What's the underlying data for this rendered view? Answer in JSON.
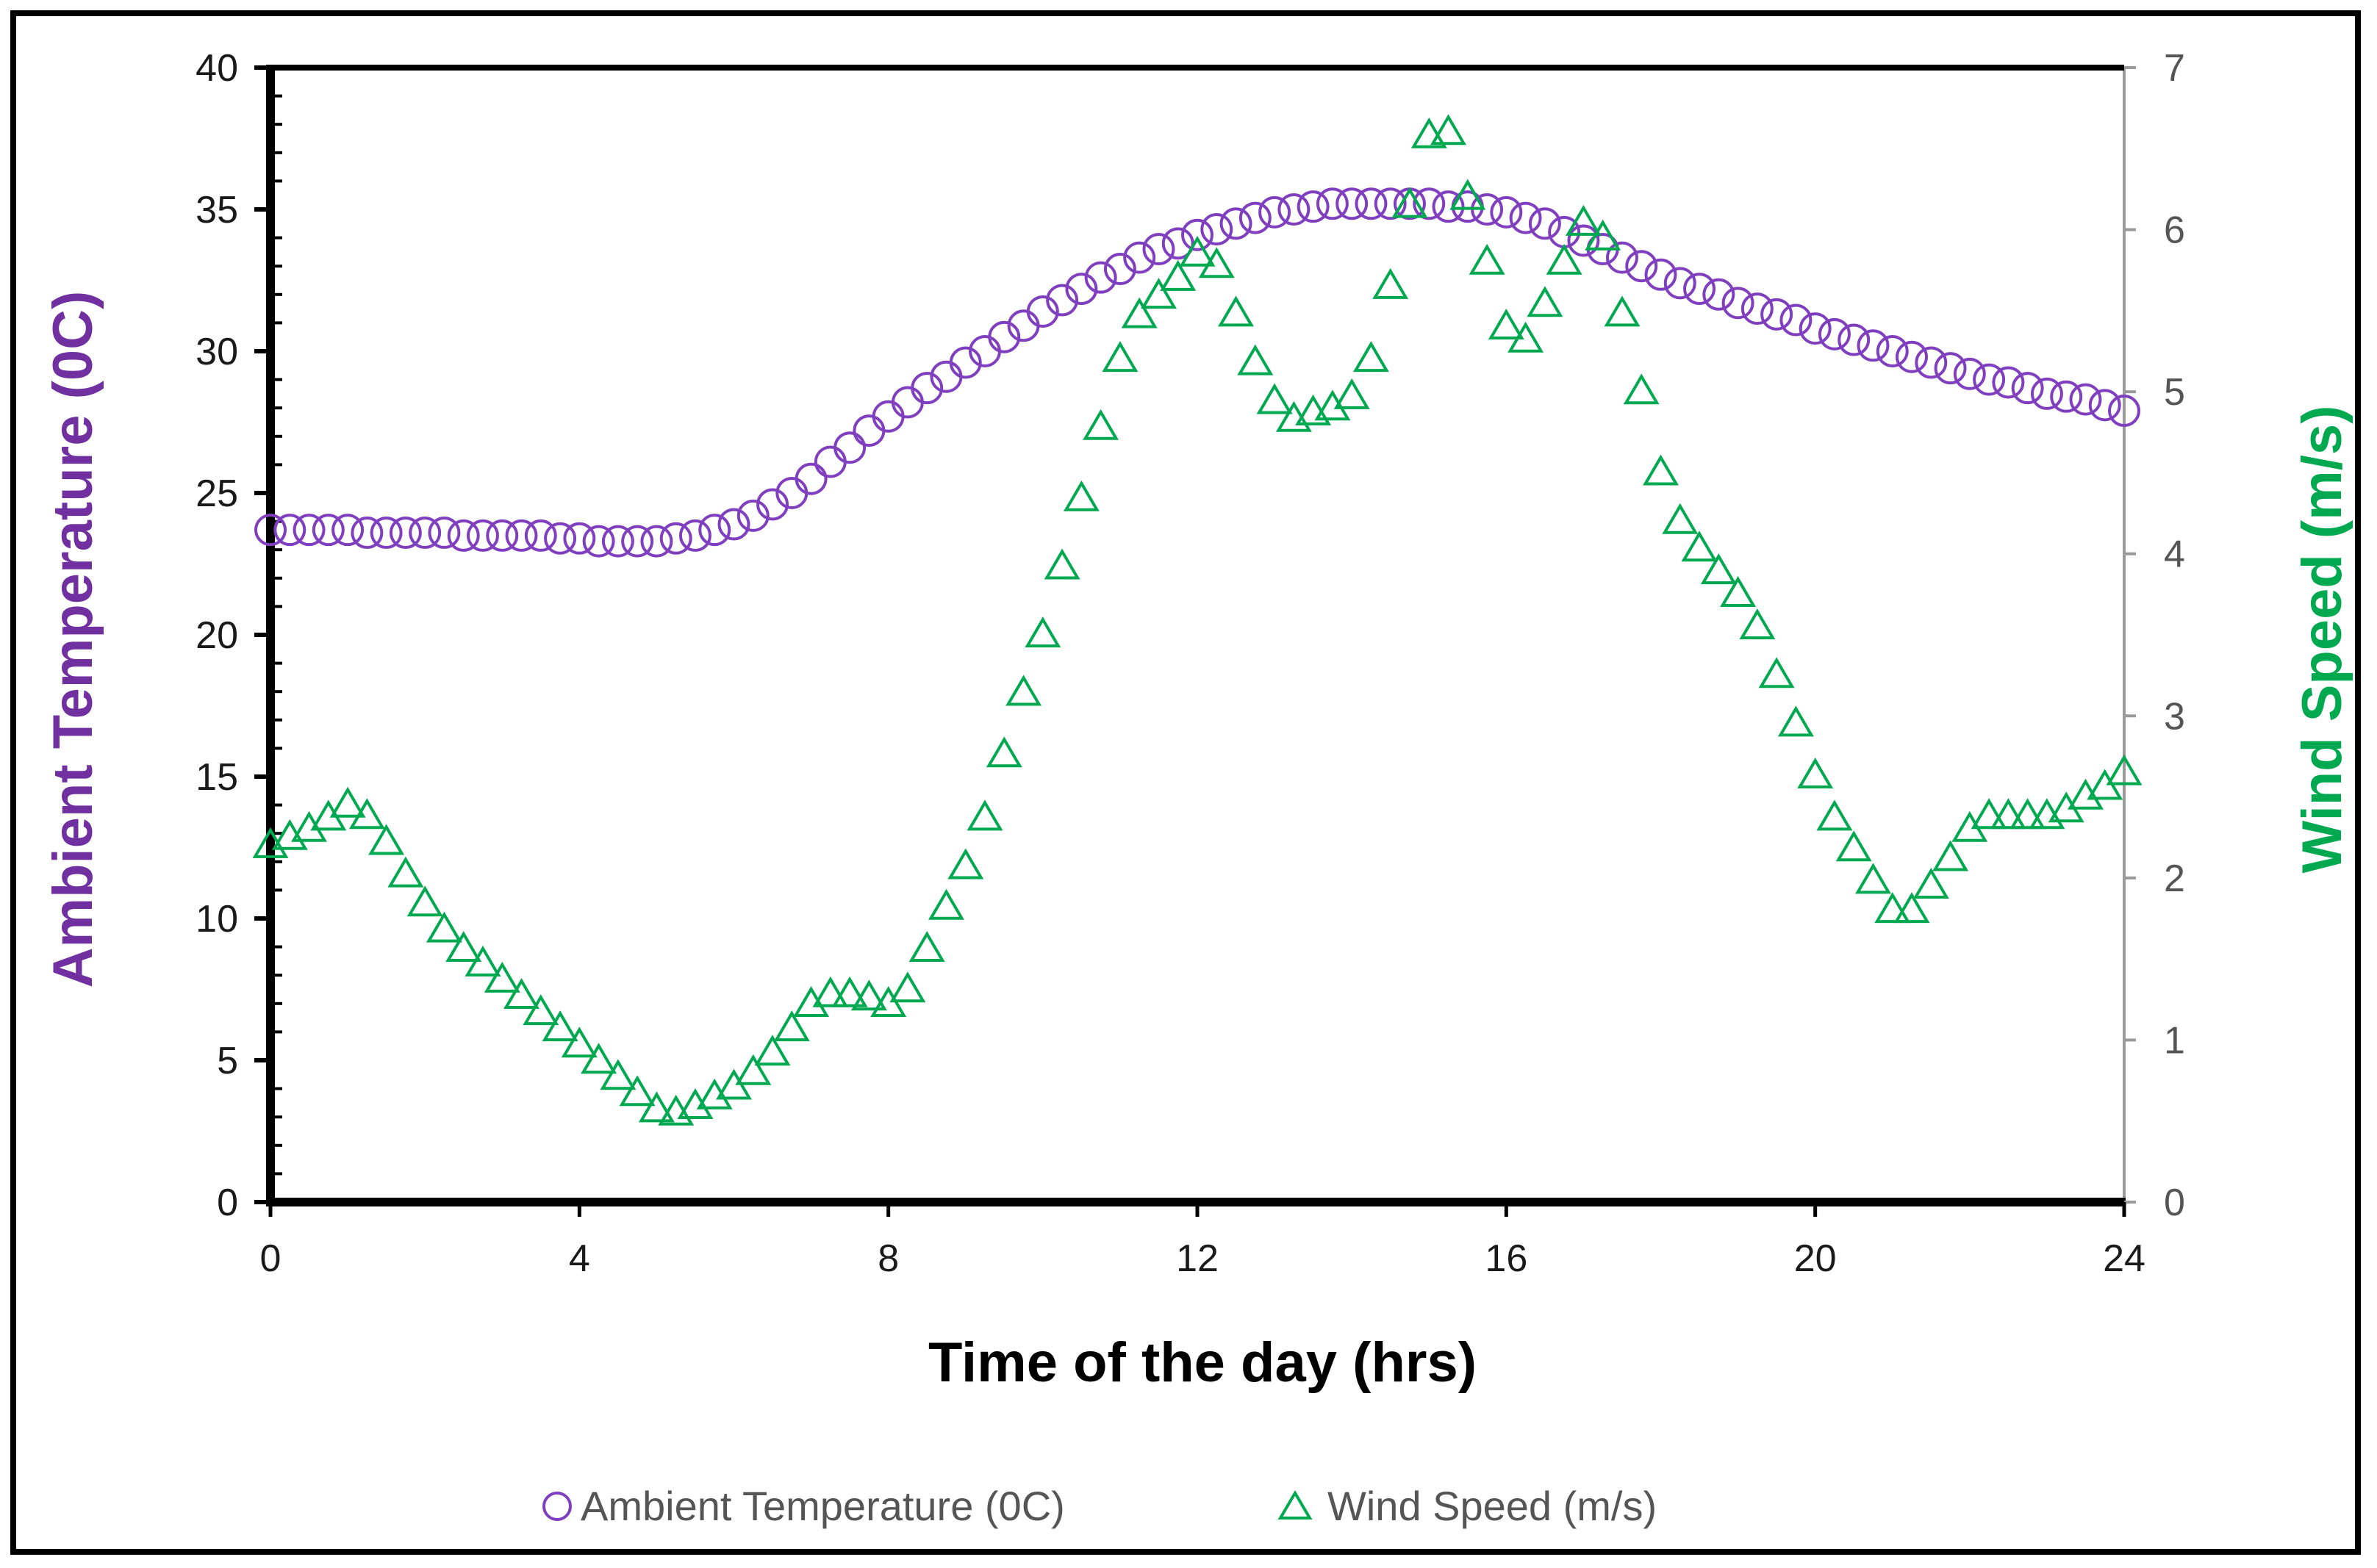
{
  "chart_data": {
    "type": "scatter",
    "title": "",
    "xlabel": "Time of the day (hrs)",
    "ylabel_left": "Ambient Temperature (0C)",
    "ylabel_right": "Wind Speed (m/s)",
    "xlim": [
      0,
      24
    ],
    "ylim_left": [
      0,
      40
    ],
    "ylim_right": [
      0,
      7
    ],
    "x_ticks": [
      "0",
      "4",
      "8",
      "12",
      "16",
      "20",
      "24"
    ],
    "y_left_ticks": [
      "0",
      "5",
      "10",
      "15",
      "20",
      "25",
      "30",
      "35",
      "40"
    ],
    "y_right_ticks": [
      "0",
      "1",
      "2",
      "3",
      "4",
      "5",
      "6",
      "7"
    ],
    "grid": false,
    "legend_position": "bottom",
    "colors": {
      "temperature": "#7f3fbf",
      "wind": "#00a84f",
      "axis": "#000000"
    },
    "series": [
      {
        "name": "Ambient Temperature (0C)",
        "axis": "left",
        "marker": "circle",
        "color": "#7f3fbf",
        "x": [
          0,
          0.25,
          0.5,
          0.75,
          1,
          1.25,
          1.5,
          1.75,
          2,
          2.25,
          2.5,
          2.75,
          3,
          3.25,
          3.5,
          3.75,
          4,
          4.25,
          4.5,
          4.75,
          5,
          5.25,
          5.5,
          5.75,
          6,
          6.25,
          6.5,
          6.75,
          7,
          7.25,
          7.5,
          7.75,
          8,
          8.25,
          8.5,
          8.75,
          9,
          9.25,
          9.5,
          9.75,
          10,
          10.25,
          10.5,
          10.75,
          11,
          11.25,
          11.5,
          11.75,
          12,
          12.25,
          12.5,
          12.75,
          13,
          13.25,
          13.5,
          13.75,
          14,
          14.25,
          14.5,
          14.75,
          15,
          15.25,
          15.5,
          15.75,
          16,
          16.25,
          16.5,
          16.75,
          17,
          17.25,
          17.5,
          17.75,
          18,
          18.25,
          18.5,
          18.75,
          19,
          19.25,
          19.5,
          19.75,
          20,
          20.25,
          20.5,
          20.75,
          21,
          21.25,
          21.5,
          21.75,
          22,
          22.25,
          22.5,
          22.75,
          23,
          23.25,
          23.5,
          23.75,
          24
        ],
        "values": [
          23.7,
          23.7,
          23.7,
          23.7,
          23.7,
          23.6,
          23.6,
          23.6,
          23.6,
          23.6,
          23.5,
          23.5,
          23.5,
          23.5,
          23.5,
          23.4,
          23.4,
          23.3,
          23.3,
          23.3,
          23.3,
          23.4,
          23.5,
          23.7,
          23.9,
          24.2,
          24.6,
          25.0,
          25.5,
          26.1,
          26.6,
          27.2,
          27.7,
          28.2,
          28.7,
          29.1,
          29.6,
          30.0,
          30.5,
          30.9,
          31.4,
          31.8,
          32.2,
          32.6,
          32.9,
          33.3,
          33.6,
          33.8,
          34.1,
          34.3,
          34.5,
          34.7,
          34.9,
          35.0,
          35.1,
          35.2,
          35.2,
          35.2,
          35.2,
          35.2,
          35.2,
          35.1,
          35.1,
          35.0,
          34.9,
          34.7,
          34.5,
          34.2,
          33.9,
          33.6,
          33.3,
          33.0,
          32.7,
          32.4,
          32.2,
          32.0,
          31.7,
          31.5,
          31.3,
          31.1,
          30.8,
          30.6,
          30.4,
          30.2,
          30.0,
          29.8,
          29.6,
          29.4,
          29.2,
          29.0,
          28.9,
          28.7,
          28.5,
          28.4,
          28.3,
          28.1,
          27.9
        ]
      },
      {
        "name": "Wind Speed (m/s)",
        "axis": "right",
        "marker": "triangle",
        "color": "#00a84f",
        "x": [
          0,
          0.25,
          0.5,
          0.75,
          1,
          1.25,
          1.5,
          1.75,
          2,
          2.25,
          2.5,
          2.75,
          3,
          3.25,
          3.5,
          3.75,
          4,
          4.25,
          4.5,
          4.75,
          5,
          5.25,
          5.5,
          5.75,
          6,
          6.25,
          6.5,
          6.75,
          7,
          7.25,
          7.5,
          7.75,
          8,
          8.25,
          8.5,
          8.75,
          9,
          9.25,
          9.5,
          9.75,
          10,
          10.25,
          10.5,
          10.75,
          11,
          11.25,
          11.5,
          11.75,
          12,
          12.25,
          12.5,
          12.75,
          13,
          13.25,
          13.5,
          13.75,
          14,
          14.25,
          14.5,
          14.75,
          15,
          15.25,
          15.5,
          15.75,
          16,
          16.25,
          16.5,
          16.75,
          17,
          17.25,
          17.5,
          17.75,
          18,
          18.25,
          18.5,
          18.75,
          19,
          19.25,
          19.5,
          19.75,
          20,
          20.25,
          20.5,
          20.75,
          21,
          21.25,
          21.5,
          21.75,
          22,
          22.25,
          22.5,
          22.75,
          23,
          23.25,
          23.5,
          23.75,
          24
        ],
        "values": [
          2.2,
          2.25,
          2.3,
          2.37,
          2.45,
          2.38,
          2.22,
          2.02,
          1.84,
          1.68,
          1.56,
          1.47,
          1.37,
          1.27,
          1.17,
          1.07,
          0.97,
          0.87,
          0.77,
          0.67,
          0.57,
          0.55,
          0.59,
          0.65,
          0.71,
          0.8,
          0.92,
          1.07,
          1.22,
          1.28,
          1.28,
          1.26,
          1.22,
          1.31,
          1.56,
          1.82,
          2.07,
          2.37,
          2.76,
          3.14,
          3.5,
          3.92,
          4.34,
          4.78,
          5.2,
          5.47,
          5.59,
          5.7,
          5.85,
          5.78,
          5.48,
          5.18,
          4.94,
          4.83,
          4.87,
          4.9,
          4.97,
          5.2,
          5.65,
          6.15,
          6.58,
          6.6,
          6.2,
          5.8,
          5.4,
          5.32,
          5.54,
          5.8,
          6.04,
          5.95,
          5.48,
          5.0,
          4.5,
          4.2,
          4.03,
          3.89,
          3.75,
          3.55,
          3.25,
          2.95,
          2.63,
          2.37,
          2.18,
          1.98,
          1.8,
          1.8,
          1.95,
          2.12,
          2.3,
          2.38,
          2.38,
          2.38,
          2.38,
          2.42,
          2.5,
          2.56,
          2.65
        ]
      }
    ]
  }
}
